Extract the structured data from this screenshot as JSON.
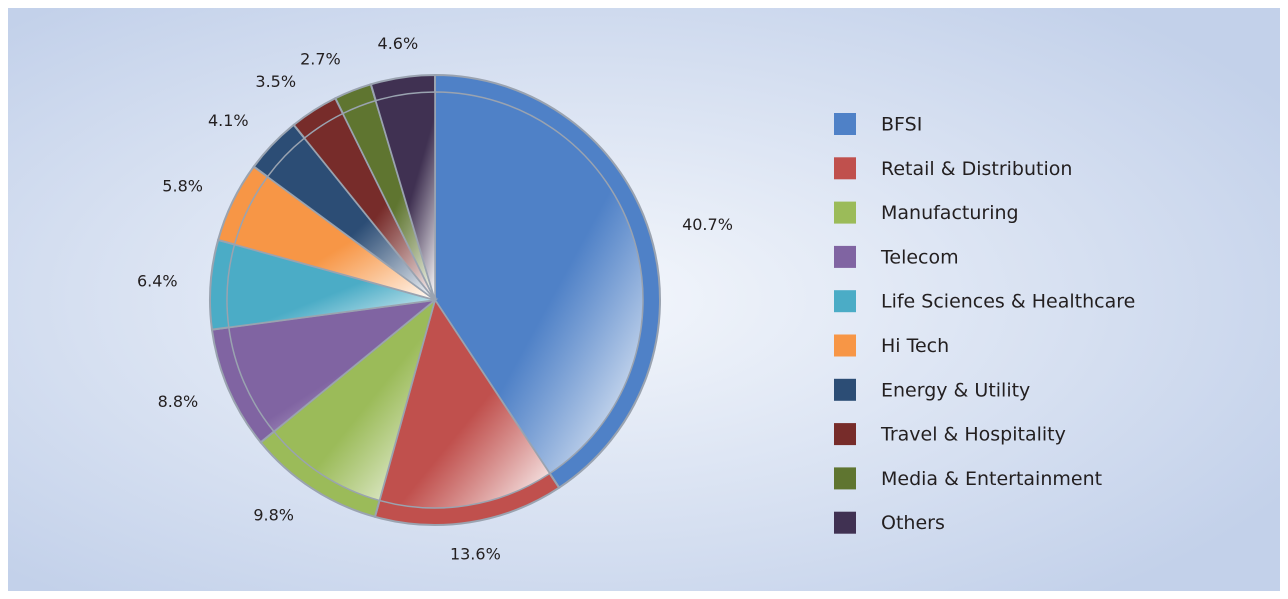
{
  "chart_data": {
    "type": "pie",
    "categories": [
      "BFSI",
      "Retail & Distribution",
      "Manufacturing",
      "Telecom",
      "Life Sciences & Healthcare",
      "Hi Tech",
      "Energy & Utility",
      "Travel & Hospitality",
      "Media & Entertainment",
      "Others"
    ],
    "values": [
      40.7,
      13.6,
      9.8,
      8.8,
      6.4,
      5.8,
      4.1,
      3.5,
      2.7,
      4.6
    ],
    "value_labels": [
      "40.7%",
      "13.6%",
      "9.8%",
      "8.8%",
      "6.4%",
      "5.8%",
      "4.1%",
      "3.5%",
      "2.7%",
      "4.6%"
    ],
    "colors": [
      "#4f81c7",
      "#c0504d",
      "#9bbb59",
      "#8064a2",
      "#4bacc6",
      "#f79646",
      "#2c4d75",
      "#772c2a",
      "#5f7530",
      "#403152"
    ],
    "legend": "right"
  }
}
